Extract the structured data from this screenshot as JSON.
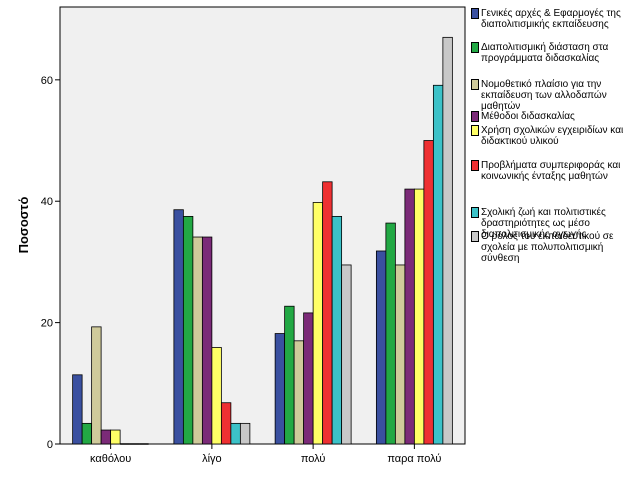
{
  "chart_data": {
    "type": "bar",
    "ylabel": "Ποσοστό",
    "xlabel": "",
    "ylim": [
      0,
      72
    ],
    "yticks": [
      0,
      20,
      40,
      60
    ],
    "grid": false,
    "legend_position": "right",
    "categories": [
      "καθόλου",
      "λίγο",
      "πολύ",
      "παρα πολύ"
    ],
    "series": [
      {
        "name": "Γενικές αρχές & Εφαρμογές της διαπολιτισμικής εκπαίδευσης",
        "color": "#3a50a0",
        "values": [
          11.4,
          38.6,
          18.2,
          31.8
        ]
      },
      {
        "name": "Διαπολιτισμική διάσταση στα προγράμματα διδασκαλίας",
        "color": "#22a844",
        "values": [
          3.4,
          37.5,
          22.7,
          36.4
        ]
      },
      {
        "name": "Νομοθετικό πλαίσιο  για την εκπαίδευση των αλλοδαπών μαθητών",
        "color": "#cfca9b",
        "values": [
          19.3,
          34.1,
          17.0,
          29.5
        ]
      },
      {
        "name": "Μέθοδοι διδασκαλίας",
        "color": "#7b2a78",
        "values": [
          2.3,
          34.1,
          21.6,
          42.0
        ]
      },
      {
        "name": "Χρήση σχολικών εγχειριδίων και διδακτικού υλικού",
        "color": "#ffff66",
        "values": [
          2.3,
          15.9,
          39.8,
          42.0
        ]
      },
      {
        "name": "Προβλήματα συμπεριφοράς και κοινωνικής ένταξης μαθητών",
        "color": "#ee3032",
        "values": [
          0,
          6.8,
          43.2,
          50.0
        ]
      },
      {
        "name": "Σχολική ζωή και πολιτιστικές δραστηριότητες ως μέσο διαπολιτισμικής αγωγής",
        "color": "#3cc2c8",
        "values": [
          0,
          3.4,
          37.5,
          59.1
        ]
      },
      {
        "name": "Ο ρόλος του εκπαιδευτικού σε σχολεία με πολυπολιτισμική σύνθεση",
        "color": "#c8c8c8",
        "values": [
          0,
          3.4,
          29.5,
          67.0
        ]
      }
    ]
  }
}
